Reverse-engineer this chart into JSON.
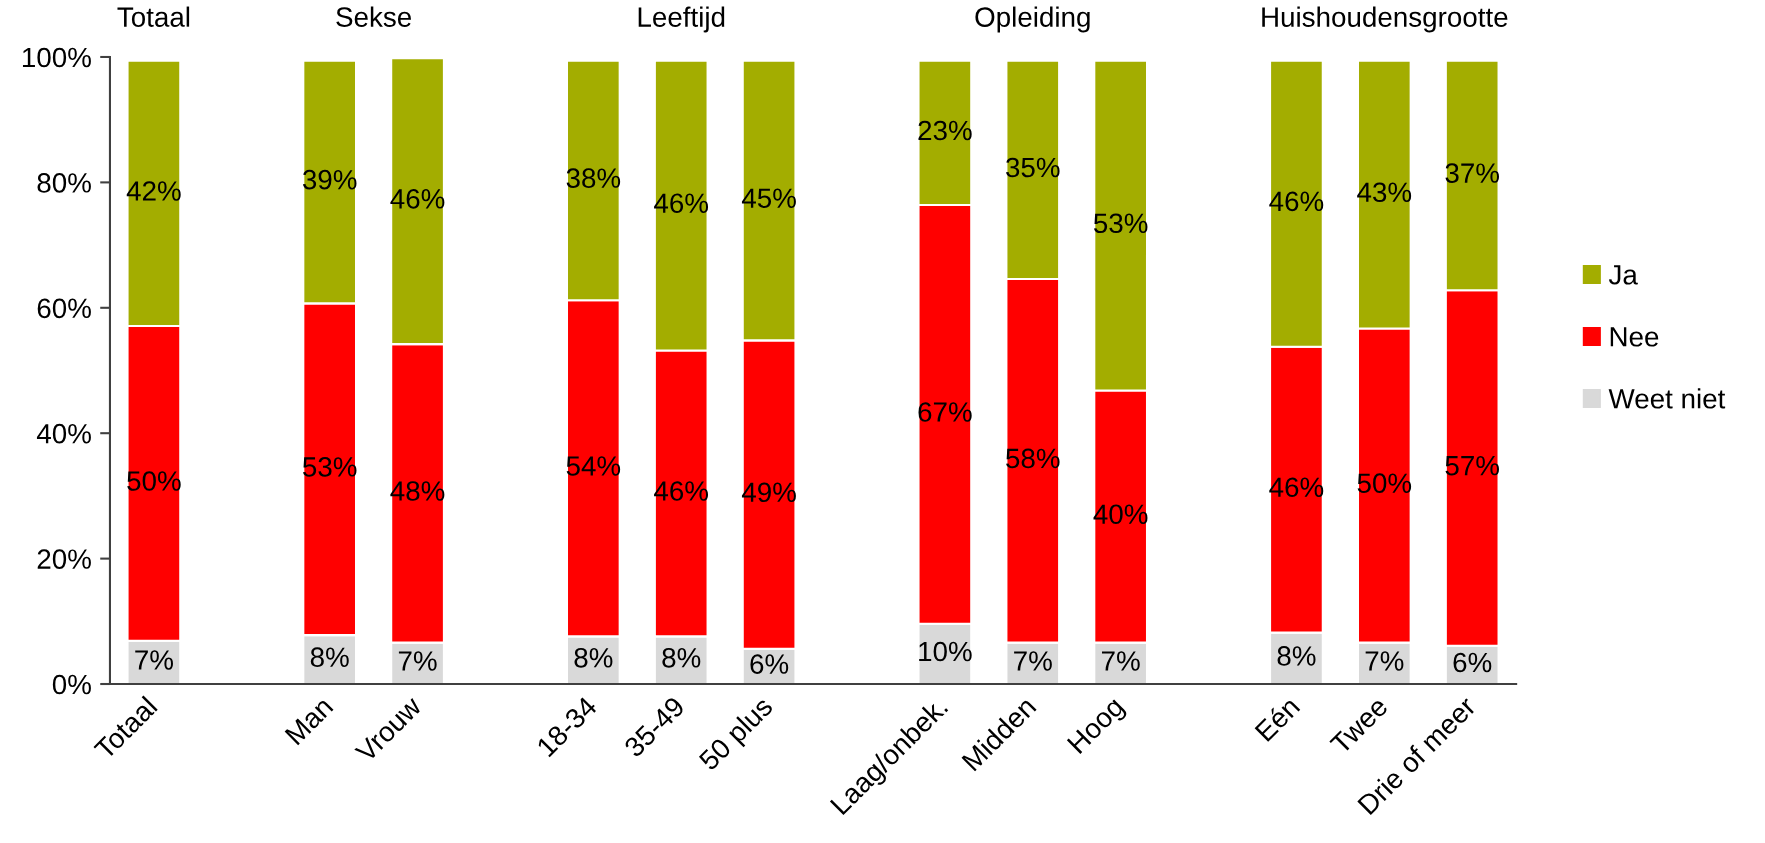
{
  "chart_data": {
    "type": "bar",
    "stacked": true,
    "categories": [
      "Totaal",
      null,
      "Man",
      "Vrouw",
      null,
      "18-34",
      "35-49",
      "50 plus",
      null,
      "Laag/onbek.",
      "Midden",
      "Hoog",
      null,
      "Eén",
      "Twee",
      "Drie of meer"
    ],
    "series": [
      {
        "name": "Weet niet",
        "color": "#d9d9d9",
        "values": [
          6.9,
          null,
          7.8,
          6.6,
          null,
          7.6,
          7.6,
          5.6,
          null,
          9.6,
          6.6,
          6.6,
          null,
          8.2,
          6.6,
          6.1
        ],
        "value_labels": [
          "7%",
          null,
          "8%",
          "7%",
          null,
          "8%",
          "8%",
          "6%",
          null,
          "10%",
          "7%",
          "7%",
          null,
          "8%",
          "7%",
          "6%"
        ]
      },
      {
        "name": "Nee",
        "color": "#ff0000",
        "values": [
          50.2,
          null,
          52.9,
          47.6,
          null,
          53.6,
          45.6,
          49.2,
          null,
          66.8,
          58.0,
          40.2,
          null,
          45.6,
          50.1,
          56.7
        ],
        "value_labels": [
          "50%",
          null,
          "53%",
          "48%",
          null,
          "54%",
          "46%",
          "49%",
          null,
          "67%",
          "58%",
          "40%",
          null,
          "46%",
          "50%",
          "57%"
        ]
      },
      {
        "name": "Ja",
        "color": "#a3ad00",
        "values": [
          42.3,
          null,
          38.7,
          45.6,
          null,
          38.2,
          46.2,
          44.6,
          null,
          23.0,
          34.8,
          52.6,
          null,
          45.6,
          42.7,
          36.6
        ],
        "value_labels": [
          "42%",
          null,
          "39%",
          "46%",
          null,
          "38%",
          "46%",
          "45%",
          null,
          "23%",
          "35%",
          "53%",
          null,
          "46%",
          "43%",
          "37%"
        ]
      }
    ],
    "ylim": [
      0,
      100
    ],
    "yticks": [
      {
        "value": 0,
        "label": "0%"
      },
      {
        "value": 20,
        "label": "20%"
      },
      {
        "value": 40,
        "label": "40%"
      },
      {
        "value": 60,
        "label": "60%"
      },
      {
        "value": 80,
        "label": "80%"
      },
      {
        "value": 100,
        "label": "100%"
      }
    ],
    "annotations": [
      "Totaal",
      "Sekse",
      "Leeftijd",
      "Opleiding",
      "Huishoudensgrootte"
    ],
    "legend": "right"
  }
}
